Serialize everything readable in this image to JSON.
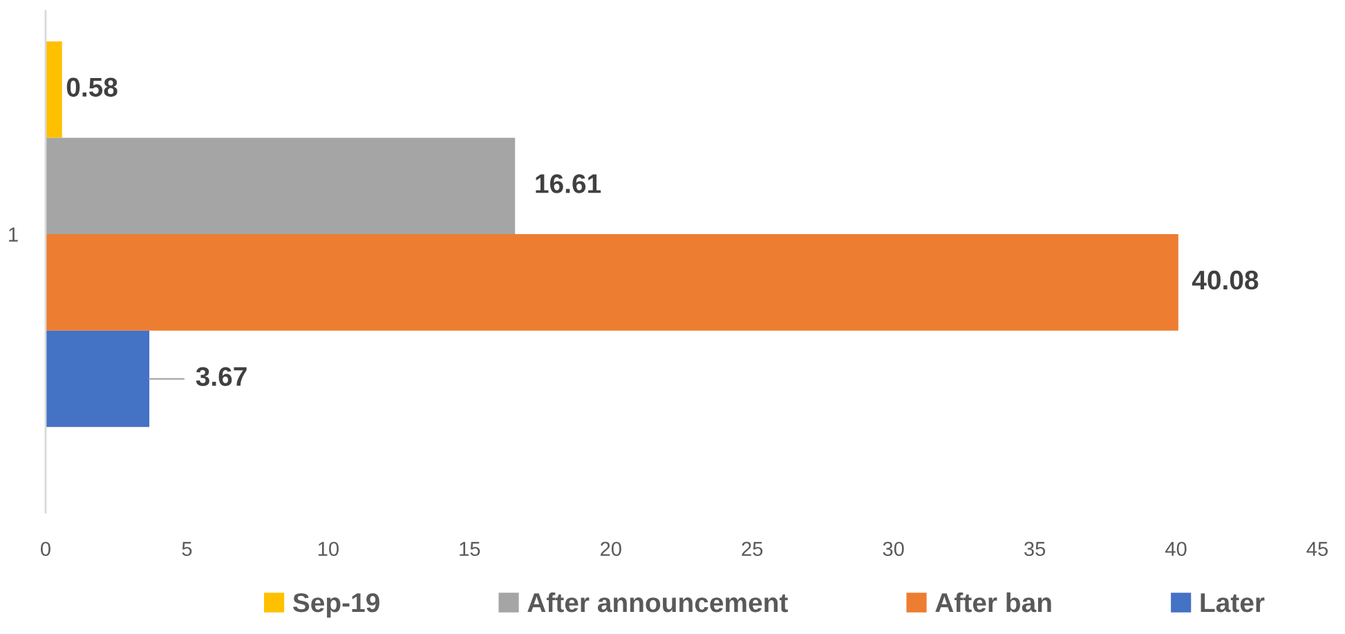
{
  "chart_data": {
    "type": "bar",
    "orientation": "horizontal",
    "categories": [
      "1"
    ],
    "series": [
      {
        "name": "Sep-19",
        "color": "#ffc000",
        "values": [
          0.58
        ]
      },
      {
        "name": "After announcement",
        "color": "#a5a5a5",
        "values": [
          16.61
        ]
      },
      {
        "name": "After ban",
        "color": "#ed7d31",
        "values": [
          40.08
        ]
      },
      {
        "name": "Later",
        "color": "#4472c4",
        "values": [
          3.67
        ]
      }
    ],
    "xlim": [
      0,
      45
    ],
    "xticks": [
      0,
      5,
      10,
      15,
      20,
      25,
      30,
      35,
      40,
      45
    ],
    "data_labels": true,
    "legend": "bottom"
  }
}
